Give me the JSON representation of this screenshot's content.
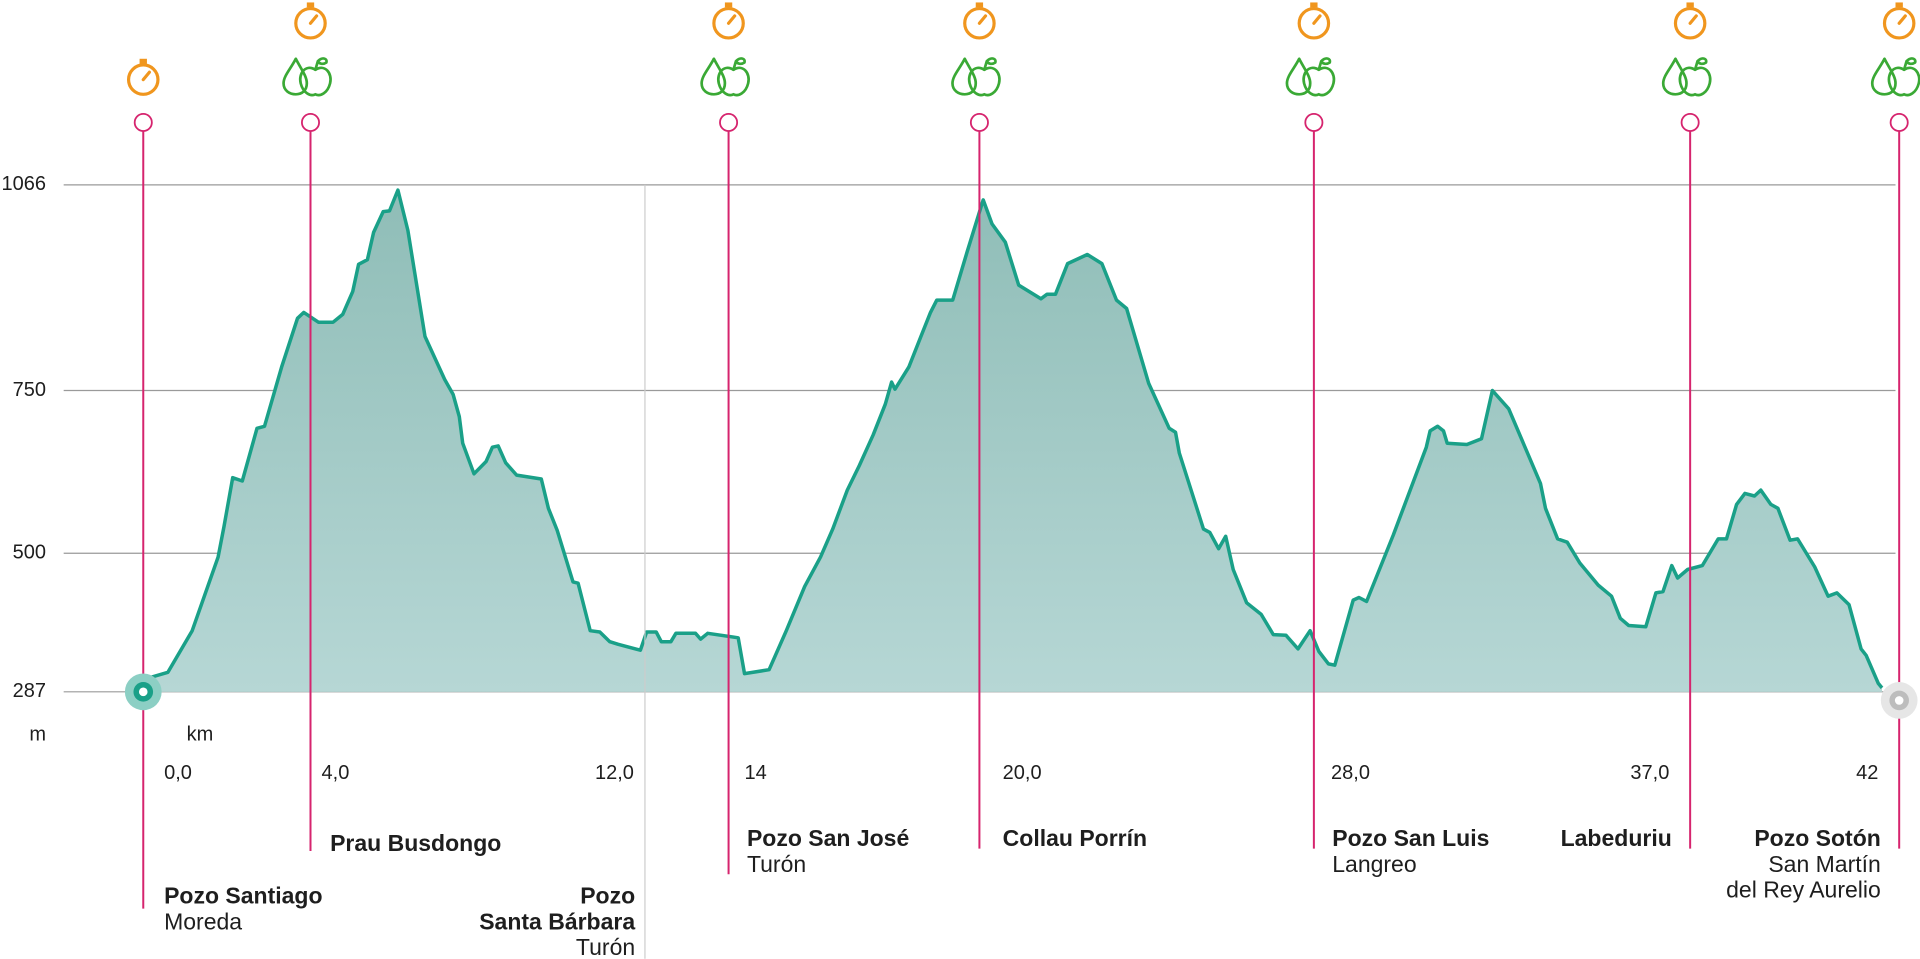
{
  "chart_data": {
    "type": "area",
    "x": [
      0,
      0.59,
      1.17,
      1.79,
      1.93,
      2.14,
      2.37,
      2.72,
      2.9,
      3.31,
      3.69,
      3.84,
      4.19,
      4.54,
      4.77,
      5.01,
      5.15,
      5.36,
      5.51,
      5.74,
      5.89,
      6.09,
      6.33,
      6.74,
      7.21,
      7.41,
      7.56,
      7.64,
      7.91,
      8.2,
      8.35,
      8.49,
      8.67,
      8.93,
      9.52,
      9.69,
      9.9,
      10.28,
      10.4,
      10.69,
      10.92,
      11.16,
      11.36,
      11.89,
      12.04,
      12.27,
      12.39,
      12.62,
      12.74,
      13.21,
      13.33,
      13.5,
      14.23,
      14.38,
      14.97,
      15.38,
      15.82,
      16.2,
      16.49,
      16.84,
      17.13,
      17.46,
      17.75,
      17.9,
      17.98,
      18.31,
      18.6,
      18.83,
      18.98,
      19.36,
      19.71,
      20.09,
      20.3,
      20.62,
      20.94,
      21.47,
      21.62,
      21.82,
      22.11,
      22.58,
      22.93,
      23.28,
      23.52,
      24.05,
      24.54,
      24.69,
      24.78,
      25.36,
      25.51,
      25.72,
      25.89,
      26.07,
      26.39,
      26.74,
      27.03,
      27.33,
      27.62,
      27.91,
      28.12,
      28.35,
      28.5,
      28.94,
      29.08,
      29.26,
      29.9,
      30.69,
      30.78,
      30.96,
      31.1,
      31.19,
      31.66,
      32.01,
      32.27,
      32.66,
      33.42,
      33.54,
      33.83,
      34.06,
      34.36,
      34.8,
      35.12,
      35.33,
      35.53,
      35.94,
      36.18,
      36.35,
      36.56,
      36.7,
      36.94,
      37.29,
      37.67,
      37.87,
      38.11,
      38.31,
      38.54,
      38.69,
      38.93,
      39.1,
      39.39,
      39.57,
      39.98,
      40.3,
      40.51,
      40.8,
      41.09,
      41.21,
      41.5,
      41.59
    ],
    "values": [
      306,
      317,
      381,
      494,
      541,
      616,
      611,
      692,
      695,
      786,
      861,
      870,
      855,
      855,
      867,
      902,
      944,
      951,
      993,
      1025,
      1026,
      1058,
      996,
      833,
      767,
      744,
      710,
      669,
      622,
      641,
      663,
      665,
      639,
      620,
      614,
      569,
      535,
      456,
      454,
      381,
      379,
      364,
      360,
      351,
      379,
      379,
      364,
      364,
      377,
      377,
      368,
      377,
      370,
      315,
      321,
      381,
      449,
      494,
      537,
      597,
      635,
      682,
      729,
      763,
      752,
      786,
      833,
      870,
      889,
      889,
      964,
      1043,
      1006,
      978,
      912,
      891,
      898,
      898,
      945,
      959,
      945,
      889,
      876,
      761,
      692,
      686,
      654,
      537,
      532,
      507,
      526,
      475,
      424,
      406,
      375,
      374,
      353,
      381,
      349,
      330,
      328,
      428,
      432,
      426,
      528,
      663,
      688,
      695,
      688,
      669,
      667,
      676,
      750,
      722,
      607,
      569,
      522,
      517,
      485,
      451,
      434,
      400,
      389,
      387,
      439,
      441,
      481,
      462,
      475,
      481,
      522,
      522,
      575,
      592,
      588,
      597,
      575,
      569,
      520,
      522,
      479,
      434,
      439,
      421,
      353,
      343,
      300,
      293
    ],
    "xlim": [
      0,
      42
    ],
    "ylim": [
      287,
      1066
    ],
    "xticks": [
      {
        "value": 0,
        "label": "0,0"
      },
      {
        "value": 4,
        "label": "4,0"
      },
      {
        "value": 12,
        "label": "12,0"
      },
      14,
      {
        "value": 20,
        "label": "20,0"
      },
      {
        "value": 28,
        "label": "28,0"
      },
      {
        "value": 37,
        "label": "37,0"
      },
      42
    ],
    "yticks": [
      287,
      500,
      750,
      1066
    ],
    "x_label": "km",
    "y_label": "m",
    "color": "#1aa088",
    "fill": "#a4cac6",
    "grid": true,
    "waypoints": [
      {
        "name": [
          "Pozo Santiago"
        ],
        "place": [
          "Moreda"
        ],
        "color": "#d6246e"
      },
      {
        "name": [
          "Prau Busdongo"
        ],
        "place": [],
        "color": "#d6246e"
      },
      {
        "name": [
          "Pozo",
          "Santa Bárbara"
        ],
        "place": [
          "Turón"
        ],
        "color": "#cccccc"
      },
      {
        "name": [
          "Pozo San José"
        ],
        "place": [
          "Turón"
        ],
        "color": "#d6246e"
      },
      {
        "name": [
          "Collau Porrín"
        ],
        "place": [],
        "color": "#d6246e"
      },
      {
        "name": [
          "Pozo San Luis"
        ],
        "place": [
          "Langreo"
        ],
        "color": "#d6246e"
      },
      {
        "name": [
          "Labeduriu"
        ],
        "place": [],
        "color": "#d6246e"
      },
      {
        "name": [
          "Pozo Sotón"
        ],
        "place": [
          "San Martín",
          "del Rey Aurelio"
        ],
        "color": "#d6246e"
      }
    ]
  }
}
